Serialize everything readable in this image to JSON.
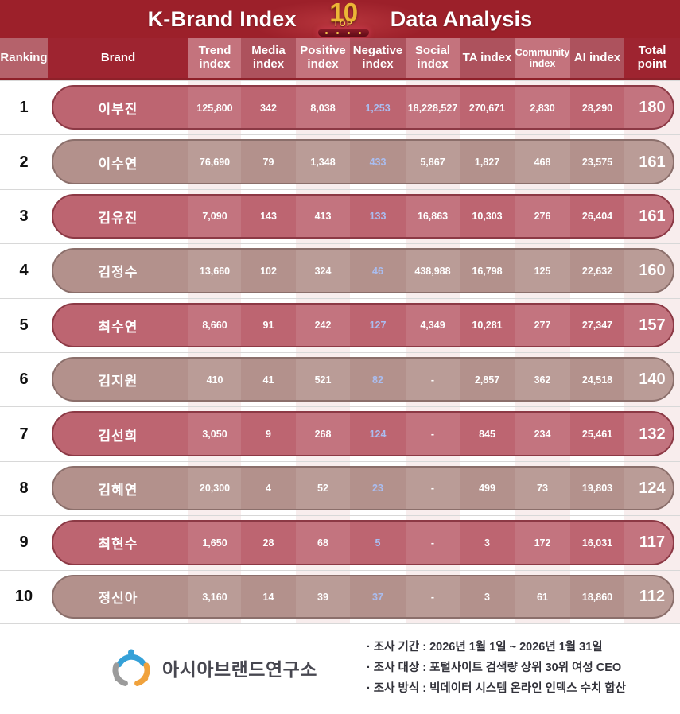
{
  "banner": {
    "title_left": "K-Brand Index",
    "title_right": "Data Analysis",
    "badge_number": "10",
    "badge_label": "TOP"
  },
  "chart_data": {
    "type": "table",
    "title": "K-Brand Index TOP 10 Data Analysis",
    "columns": [
      "Ranking",
      "Brand",
      "Trend index",
      "Media index",
      "Positive index",
      "Negative index",
      "Social index",
      "TA index",
      "Community index",
      "AI index",
      "Total point"
    ],
    "rows": [
      {
        "rank": "1",
        "brand": "이부진",
        "values": [
          "125,800",
          "342",
          "8,038",
          "1,253",
          "18,228,527",
          "270,671",
          "2,830",
          "28,290"
        ],
        "total": "180"
      },
      {
        "rank": "2",
        "brand": "이수연",
        "values": [
          "76,690",
          "79",
          "1,348",
          "433",
          "5,867",
          "1,827",
          "468",
          "23,575"
        ],
        "total": "161"
      },
      {
        "rank": "3",
        "brand": "김유진",
        "values": [
          "7,090",
          "143",
          "413",
          "133",
          "16,863",
          "10,303",
          "276",
          "26,404"
        ],
        "total": "161"
      },
      {
        "rank": "4",
        "brand": "김정수",
        "values": [
          "13,660",
          "102",
          "324",
          "46",
          "438,988",
          "16,798",
          "125",
          "22,632"
        ],
        "total": "160"
      },
      {
        "rank": "5",
        "brand": "최수연",
        "values": [
          "8,660",
          "91",
          "242",
          "127",
          "4,349",
          "10,281",
          "277",
          "27,347"
        ],
        "total": "157"
      },
      {
        "rank": "6",
        "brand": "김지원",
        "values": [
          "410",
          "41",
          "521",
          "82",
          "-",
          "2,857",
          "362",
          "24,518"
        ],
        "total": "140"
      },
      {
        "rank": "7",
        "brand": "김선희",
        "values": [
          "3,050",
          "9",
          "268",
          "124",
          "-",
          "845",
          "234",
          "25,461"
        ],
        "total": "132"
      },
      {
        "rank": "8",
        "brand": "김혜연",
        "values": [
          "20,300",
          "4",
          "52",
          "23",
          "-",
          "499",
          "73",
          "19,803"
        ],
        "total": "124"
      },
      {
        "rank": "9",
        "brand": "최현수",
        "values": [
          "1,650",
          "28",
          "68",
          "5",
          "-",
          "3",
          "172",
          "16,031"
        ],
        "total": "117"
      },
      {
        "rank": "10",
        "brand": "정신아",
        "values": [
          "3,160",
          "14",
          "39",
          "37",
          "-",
          "3",
          "61",
          "18,860"
        ],
        "total": "112"
      }
    ],
    "colors": {
      "banner_red": "#9c202a",
      "header_dark": "#9e2430",
      "header_medium": "#ad525d",
      "header_light": "#c4737d",
      "row_odd": "#bd6571",
      "row_even": "#b3918c",
      "negative_value_text": "#aabdf0",
      "trophy_gold": "#ecb637"
    }
  },
  "footer": {
    "logo_text": "아시아브랜드연구소",
    "notes": [
      "· 조사 기간 : 2026년 1월 1일 ~ 2026년 1월 31일",
      "· 조사 대상 : 포털사이트 검색량 상위 30위 여성 CEO",
      "· 조사 방식 : 빅데이터 시스템 온라인 인덱스 수치 합산"
    ]
  }
}
